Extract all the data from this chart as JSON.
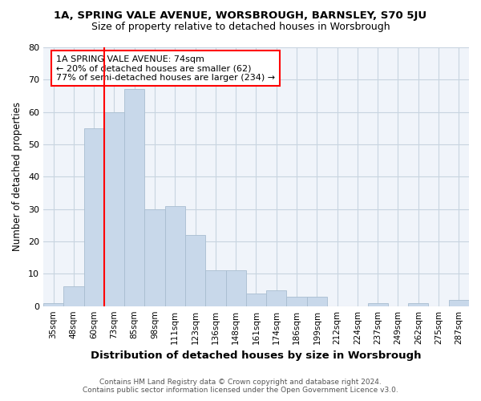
{
  "title_line1": "1A, SPRING VALE AVENUE, WORSBROUGH, BARNSLEY, S70 5JU",
  "title_line2": "Size of property relative to detached houses in Worsbrough",
  "xlabel": "Distribution of detached houses by size in Worsbrough",
  "ylabel": "Number of detached properties",
  "categories": [
    "35sqm",
    "48sqm",
    "60sqm",
    "73sqm",
    "85sqm",
    "98sqm",
    "111sqm",
    "123sqm",
    "136sqm",
    "148sqm",
    "161sqm",
    "174sqm",
    "186sqm",
    "199sqm",
    "212sqm",
    "224sqm",
    "237sqm",
    "249sqm",
    "262sqm",
    "275sqm",
    "287sqm"
  ],
  "values": [
    1,
    6,
    55,
    60,
    67,
    30,
    31,
    22,
    11,
    11,
    4,
    5,
    3,
    3,
    0,
    0,
    1,
    0,
    1,
    0,
    2
  ],
  "bar_color": "#c8d8ea",
  "bar_edge_color": "#a8bdd0",
  "ylim": [
    0,
    80
  ],
  "yticks": [
    0,
    10,
    20,
    30,
    40,
    50,
    60,
    70,
    80
  ],
  "red_line_bin_index": 3,
  "annotation_text_line1": "1A SPRING VALE AVENUE: 74sqm",
  "annotation_text_line2": "← 20% of detached houses are smaller (62)",
  "annotation_text_line3": "77% of semi-detached houses are larger (234) →",
  "footer_line1": "Contains HM Land Registry data © Crown copyright and database right 2024.",
  "footer_line2": "Contains public sector information licensed under the Open Government Licence v3.0.",
  "bg_color": "#ffffff",
  "plot_bg_color": "#f0f4fa",
  "grid_color": "#c8d4e0"
}
